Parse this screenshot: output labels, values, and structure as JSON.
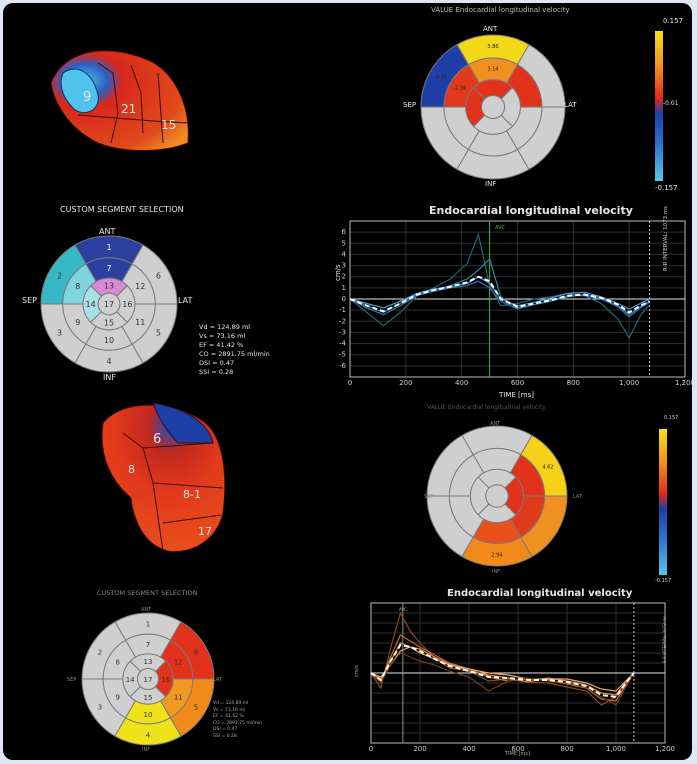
{
  "colors": {
    "frame_bg": "#000000",
    "outer_bg": "#dfe8f2",
    "accent_high": "#f5e11a",
    "mid": "#e3261a",
    "low": "#1b5fd2",
    "lowest": "#56c7e8",
    "grey_segment": "#cfcfcf"
  },
  "heart_models": [
    {
      "labels": [
        "9",
        "21",
        "15"
      ],
      "icon": "3d-heart-model-icon"
    },
    {
      "labels": [
        "6",
        "8",
        "8-1",
        "17"
      ],
      "icon": "3d-heart-model-icon"
    }
  ],
  "top_polar": {
    "title": "VALUE Endocardial longitudinal velocity",
    "labels": {
      "ant": "ANT",
      "sep": "SEP",
      "lat": "LAT",
      "inf": "INF"
    },
    "scale": {
      "max": "0.157",
      "mid": "-0.01",
      "min": "-0.157"
    }
  },
  "custom1": {
    "title": "CUSTOM SEGMENT SELECTION",
    "labels": {
      "ant": "ANT",
      "sep": "SEP",
      "lat": "LAT",
      "inf": "INF"
    },
    "stats": [
      "Vd = 124.89 ml",
      "Vs = 73.16 ml",
      "EF = 41.42 %",
      "CO = 2891.75 ml/min",
      "DSI = 0.47",
      "SSI = 0.28"
    ]
  },
  "chart1": {
    "title": "Endocardial longitudinal velocity",
    "ylabel": "cm/s",
    "xlabel": "TIME [ms]",
    "marker": "AVC",
    "side_label": "R-R INTERVAL: 1073 ms"
  },
  "bottom_polar": {
    "title": "VALUE Endocardial longitudinal velocity",
    "labels": {
      "ant": "ANT",
      "sep": "SEP",
      "lat": "LAT",
      "inf": "INF"
    },
    "scale": {
      "max": "0.157",
      "min": "-0.157"
    }
  },
  "custom2": {
    "title": "CUSTOM SEGMENT SELECTION",
    "labels": {
      "ant": "ANT",
      "sep": "SEP",
      "lat": "LAT",
      "inf": "INF"
    },
    "stats": [
      "Vd = 124.89 ml",
      "Vs = 73.16 ml",
      "EF = 41.42 %",
      "CO = 2891.75 ml/min",
      "DSI = 0.47",
      "SSI = 0.28"
    ]
  },
  "chart2": {
    "title": "Endocardial longitudinal velocity",
    "ylabel": "cm/s",
    "xlabel": "TIME [ms]",
    "marker": "AVC",
    "side_label": "R-R INTERVAL: 1073 ms"
  },
  "chart_data": [
    {
      "type": "line",
      "title": "Endocardial longitudinal velocity",
      "xlabel": "TIME [ms]",
      "ylabel": "cm/s",
      "xlim": [
        0,
        1200
      ],
      "ylim": [
        -7,
        7
      ],
      "xticks": [
        0,
        200,
        400,
        600,
        800,
        1000,
        1200
      ],
      "xticklabels": [
        "0",
        "200",
        "400",
        "600",
        "800",
        "1,000",
        "1,200"
      ],
      "yticks": [
        -6,
        -5,
        -4,
        -3,
        -2,
        -1,
        0,
        1,
        2,
        3,
        4,
        5,
        6
      ],
      "avc_ms": 500,
      "rr_ms": 1073,
      "series": [
        {
          "color": "#1d6a70",
          "x": [
            0,
            60,
            120,
            180,
            240,
            300,
            360,
            420,
            460,
            500,
            540,
            600,
            660,
            720,
            780,
            840,
            900,
            960,
            1000,
            1040,
            1073
          ],
          "y": [
            0,
            -1.2,
            -2.4,
            -1.2,
            0.3,
            1.0,
            1.8,
            3.2,
            5.8,
            1.2,
            -0.6,
            -0.4,
            0.0,
            0.2,
            0.5,
            0.3,
            -0.4,
            -1.8,
            -3.5,
            -1.5,
            -0.5
          ]
        },
        {
          "color": "#2a8ca0",
          "x": [
            0,
            60,
            120,
            180,
            240,
            300,
            360,
            420,
            460,
            500,
            540,
            600,
            660,
            720,
            780,
            840,
            900,
            960,
            1000,
            1040,
            1073
          ],
          "y": [
            0,
            -0.6,
            -1.2,
            -0.4,
            0.4,
            0.8,
            1.2,
            1.8,
            2.6,
            3.6,
            0.2,
            -0.8,
            -0.5,
            -0.2,
            0.2,
            0.4,
            0.1,
            -0.6,
            -1.4,
            -0.7,
            -0.2
          ]
        },
        {
          "color": "#4d98d6",
          "x": [
            0,
            60,
            120,
            180,
            240,
            300,
            360,
            420,
            460,
            500,
            540,
            600,
            660,
            720,
            780,
            840,
            900,
            960,
            1000,
            1040,
            1073
          ],
          "y": [
            0,
            -0.4,
            -0.8,
            -0.2,
            0.5,
            0.9,
            1.1,
            1.4,
            2.0,
            1.4,
            0.0,
            -0.6,
            -0.3,
            0.1,
            0.5,
            0.6,
            0.2,
            -0.4,
            -0.9,
            -0.4,
            0.0
          ]
        },
        {
          "color": "#3f6ec4",
          "x": [
            0,
            60,
            120,
            180,
            240,
            300,
            360,
            420,
            460,
            500,
            540,
            600,
            660,
            720,
            780,
            840,
            900,
            960,
            1000,
            1040,
            1073
          ],
          "y": [
            0,
            -0.8,
            -1.4,
            -0.6,
            0.3,
            0.7,
            1.0,
            1.2,
            1.6,
            1.0,
            -0.2,
            -0.9,
            -0.5,
            -0.1,
            0.3,
            0.3,
            0.0,
            -0.7,
            -1.6,
            -0.8,
            -0.3
          ]
        },
        {
          "color": "#ffffff",
          "dashed": true,
          "x": [
            0,
            60,
            120,
            180,
            240,
            300,
            360,
            420,
            460,
            500,
            540,
            600,
            660,
            720,
            780,
            840,
            900,
            960,
            1000,
            1040,
            1073
          ],
          "y": [
            0,
            -0.6,
            -1.1,
            -0.4,
            0.4,
            0.8,
            1.1,
            1.5,
            2.0,
            1.6,
            0.0,
            -0.7,
            -0.4,
            -0.1,
            0.3,
            0.4,
            0.1,
            -0.5,
            -1.2,
            -0.6,
            -0.2
          ]
        }
      ]
    },
    {
      "type": "line",
      "title": "Endocardial longitudinal velocity",
      "xlabel": "TIME [ms]",
      "ylabel": "cm/s",
      "xlim": [
        0,
        1200
      ],
      "ylim": [
        -7,
        7
      ],
      "xticks": [
        0,
        200,
        400,
        600,
        800,
        1000,
        1200
      ],
      "xticklabels": [
        "0",
        "200",
        "400",
        "600",
        "800",
        "1,000",
        "1,200"
      ],
      "avc_ms": 130,
      "rr_ms": 1073,
      "series": [
        {
          "color": "#8a4a1a",
          "x": [
            0,
            40,
            80,
            120,
            160,
            200,
            260,
            320,
            400,
            480,
            560,
            640,
            720,
            800,
            880,
            940,
            1000,
            1040,
            1073
          ],
          "y": [
            0,
            -1.5,
            2.5,
            6.0,
            4.2,
            3.0,
            1.5,
            0.5,
            0.2,
            -0.8,
            -0.6,
            -0.9,
            -1.0,
            -1.4,
            -1.8,
            -3.2,
            -2.4,
            -1.0,
            0.0
          ]
        },
        {
          "color": "#c46a2a",
          "x": [
            0,
            40,
            80,
            120,
            160,
            200,
            260,
            320,
            400,
            480,
            560,
            640,
            720,
            800,
            880,
            940,
            1000,
            1040,
            1073
          ],
          "y": [
            0,
            -0.8,
            1.6,
            3.8,
            3.2,
            2.6,
            1.8,
            1.0,
            0.4,
            -0.4,
            -0.8,
            -0.6,
            -0.7,
            -1.1,
            -1.5,
            -2.6,
            -2.8,
            -1.2,
            0.0
          ]
        },
        {
          "color": "#d9853e",
          "x": [
            0,
            40,
            80,
            120,
            160,
            200,
            260,
            320,
            400,
            480,
            560,
            640,
            720,
            800,
            880,
            940,
            1000,
            1040,
            1073
          ],
          "y": [
            0,
            -0.6,
            1.2,
            3.0,
            2.6,
            2.4,
            1.6,
            0.9,
            0.2,
            -0.2,
            -0.5,
            -0.9,
            -0.5,
            -0.8,
            -1.2,
            -2.0,
            -2.2,
            -0.9,
            0.0
          ]
        },
        {
          "color": "#e8a96a",
          "x": [
            0,
            40,
            80,
            120,
            160,
            200,
            260,
            320,
            400,
            480,
            560,
            640,
            720,
            800,
            880,
            940,
            1000,
            1040,
            1073
          ],
          "y": [
            0,
            -0.4,
            0.8,
            2.2,
            2.6,
            2.0,
            1.4,
            0.8,
            0.4,
            0.0,
            -0.2,
            -0.6,
            -0.6,
            -0.6,
            -1.0,
            -1.6,
            -1.8,
            -0.8,
            0.0
          ]
        },
        {
          "color": "#6e3a16",
          "x": [
            0,
            40,
            80,
            120,
            160,
            200,
            260,
            320,
            400,
            480,
            560,
            640,
            720,
            800,
            880,
            940,
            1000,
            1040,
            1073
          ],
          "y": [
            0,
            -1.0,
            0.8,
            2.0,
            1.6,
            1.2,
            0.8,
            0.2,
            -0.4,
            -1.8,
            -0.8,
            -0.5,
            -0.8,
            -1.0,
            -1.2,
            -2.4,
            -3.2,
            -1.4,
            0.0
          ]
        },
        {
          "color": "#ffffff",
          "dashed": true,
          "x": [
            0,
            40,
            80,
            120,
            160,
            200,
            260,
            320,
            400,
            480,
            560,
            640,
            720,
            800,
            880,
            940,
            1000,
            1040,
            1073
          ],
          "y": [
            0,
            -0.7,
            1.2,
            2.8,
            2.6,
            2.2,
            1.4,
            0.7,
            0.2,
            -0.4,
            -0.5,
            -0.7,
            -0.7,
            -0.9,
            -1.3,
            -2.2,
            -2.4,
            -1.0,
            0.0
          ]
        }
      ]
    }
  ]
}
